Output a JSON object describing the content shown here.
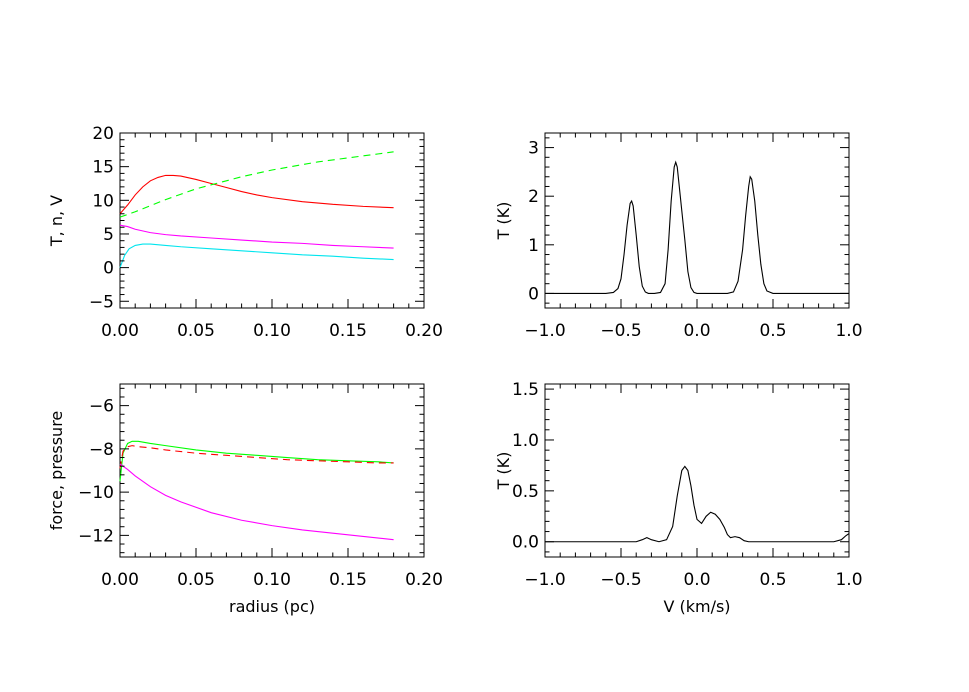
{
  "chart_data": [
    {
      "type": "line",
      "panel": "top-left",
      "xlabel": "",
      "ylabel": "T, n, V",
      "xlim": [
        0.0,
        0.2
      ],
      "ylim": [
        -6,
        20
      ],
      "xticks": [
        {
          "value": 0.0,
          "label": "0.00"
        },
        {
          "value": 0.05,
          "label": "0.05"
        },
        {
          "value": 0.1,
          "label": "0.10"
        },
        {
          "value": 0.15,
          "label": "0.15"
        },
        {
          "value": 0.2,
          "label": "0.20"
        }
      ],
      "yticks": [
        {
          "value": -5,
          "label": "−5"
        },
        {
          "value": 0,
          "label": "0"
        },
        {
          "value": 5,
          "label": "5"
        },
        {
          "value": 10,
          "label": "10"
        },
        {
          "value": 15,
          "label": "15"
        },
        {
          "value": 20,
          "label": "20"
        }
      ],
      "series": [
        {
          "color": "#ff0000",
          "dash": "solid",
          "x": [
            0.0,
            0.005,
            0.01,
            0.015,
            0.02,
            0.025,
            0.03,
            0.035,
            0.04,
            0.05,
            0.06,
            0.07,
            0.08,
            0.09,
            0.1,
            0.12,
            0.14,
            0.16,
            0.18
          ],
          "y": [
            8.0,
            9.3,
            10.8,
            12.0,
            12.9,
            13.4,
            13.7,
            13.7,
            13.6,
            13.1,
            12.5,
            11.9,
            11.3,
            10.8,
            10.4,
            9.8,
            9.4,
            9.1,
            8.9
          ]
        },
        {
          "color": "#00ff00",
          "dash": "dashed",
          "x": [
            0.0,
            0.01,
            0.02,
            0.03,
            0.04,
            0.05,
            0.06,
            0.07,
            0.08,
            0.09,
            0.1,
            0.11,
            0.12,
            0.13,
            0.14,
            0.15,
            0.16,
            0.17,
            0.18
          ],
          "y": [
            7.5,
            8.3,
            9.2,
            10.1,
            10.9,
            11.7,
            12.3,
            12.9,
            13.5,
            14.0,
            14.5,
            14.9,
            15.3,
            15.7,
            16.0,
            16.3,
            16.6,
            16.9,
            17.2
          ]
        },
        {
          "color": "#ff00ff",
          "dash": "solid",
          "x": [
            0.0,
            0.005,
            0.01,
            0.02,
            0.03,
            0.04,
            0.06,
            0.08,
            0.1,
            0.12,
            0.14,
            0.16,
            0.18
          ],
          "y": [
            6.3,
            6.1,
            5.7,
            5.2,
            4.9,
            4.7,
            4.4,
            4.1,
            3.8,
            3.6,
            3.3,
            3.1,
            2.9
          ]
        },
        {
          "color": "#00e5ee",
          "dash": "solid",
          "x": [
            0.0,
            0.003,
            0.006,
            0.01,
            0.015,
            0.02,
            0.03,
            0.04,
            0.06,
            0.08,
            0.1,
            0.12,
            0.14,
            0.16,
            0.18
          ],
          "y": [
            0.0,
            1.8,
            2.8,
            3.3,
            3.5,
            3.5,
            3.3,
            3.1,
            2.8,
            2.5,
            2.2,
            1.9,
            1.7,
            1.4,
            1.2
          ]
        }
      ]
    },
    {
      "type": "line",
      "panel": "top-right",
      "xlabel": "",
      "ylabel": "T (K)",
      "xlim": [
        -1.0,
        1.0
      ],
      "ylim": [
        -0.3,
        3.3
      ],
      "xticks": [
        {
          "value": -1.0,
          "label": "−1.0"
        },
        {
          "value": -0.5,
          "label": "−0.5"
        },
        {
          "value": 0.0,
          "label": "0.0"
        },
        {
          "value": 0.5,
          "label": "0.5"
        },
        {
          "value": 1.0,
          "label": "1.0"
        }
      ],
      "yticks": [
        {
          "value": 0,
          "label": "0"
        },
        {
          "value": 1,
          "label": "1"
        },
        {
          "value": 2,
          "label": "2"
        },
        {
          "value": 3,
          "label": "3"
        }
      ],
      "series": [
        {
          "color": "#000000",
          "dash": "solid",
          "x": [
            -1.0,
            -0.6,
            -0.55,
            -0.52,
            -0.5,
            -0.48,
            -0.46,
            -0.44,
            -0.43,
            -0.42,
            -0.4,
            -0.38,
            -0.36,
            -0.34,
            -0.32,
            -0.28,
            -0.24,
            -0.21,
            -0.19,
            -0.17,
            -0.15,
            -0.14,
            -0.13,
            -0.12,
            -0.1,
            -0.08,
            -0.06,
            -0.04,
            -0.02,
            0.0,
            0.2,
            0.24,
            0.27,
            0.3,
            0.32,
            0.34,
            0.35,
            0.36,
            0.38,
            0.4,
            0.42,
            0.44,
            0.46,
            0.5,
            1.0
          ],
          "y": [
            0.0,
            0.0,
            0.02,
            0.1,
            0.3,
            0.8,
            1.4,
            1.85,
            1.9,
            1.8,
            1.2,
            0.55,
            0.15,
            0.03,
            0.0,
            0.0,
            0.02,
            0.2,
            0.9,
            1.9,
            2.6,
            2.7,
            2.6,
            2.3,
            1.7,
            1.1,
            0.45,
            0.12,
            0.02,
            0.0,
            0.0,
            0.03,
            0.25,
            0.9,
            1.6,
            2.2,
            2.4,
            2.35,
            1.9,
            1.2,
            0.6,
            0.2,
            0.05,
            0.0,
            0.0
          ]
        }
      ]
    },
    {
      "type": "line",
      "panel": "bottom-left",
      "xlabel": "radius (pc)",
      "ylabel": "force, pressure",
      "xlim": [
        0.0,
        0.2
      ],
      "ylim": [
        -13,
        -5
      ],
      "xticks": [
        {
          "value": 0.0,
          "label": "0.00"
        },
        {
          "value": 0.05,
          "label": "0.05"
        },
        {
          "value": 0.1,
          "label": "0.10"
        },
        {
          "value": 0.15,
          "label": "0.15"
        },
        {
          "value": 0.2,
          "label": "0.20"
        }
      ],
      "yticks": [
        {
          "value": -12,
          "label": "−12"
        },
        {
          "value": -10,
          "label": "−10"
        },
        {
          "value": -8,
          "label": "−8"
        },
        {
          "value": -6,
          "label": "−6"
        }
      ],
      "series": [
        {
          "color": "#00ff00",
          "dash": "solid",
          "x": [
            0.0,
            0.002,
            0.005,
            0.008,
            0.012,
            0.02,
            0.03,
            0.05,
            0.07,
            0.09,
            0.11,
            0.13,
            0.15,
            0.17,
            0.18
          ],
          "y": [
            -9.5,
            -8.2,
            -7.75,
            -7.65,
            -7.65,
            -7.75,
            -7.85,
            -8.05,
            -8.2,
            -8.3,
            -8.4,
            -8.5,
            -8.55,
            -8.6,
            -8.65
          ]
        },
        {
          "color": "#ff0000",
          "dash": "dashed",
          "x": [
            0.0,
            0.002,
            0.005,
            0.008,
            0.012,
            0.02,
            0.03,
            0.05,
            0.07,
            0.09,
            0.11,
            0.13,
            0.15,
            0.17,
            0.18
          ],
          "y": [
            -8.9,
            -8.1,
            -7.9,
            -7.85,
            -7.9,
            -7.95,
            -8.05,
            -8.2,
            -8.3,
            -8.4,
            -8.5,
            -8.55,
            -8.6,
            -8.65,
            -8.65
          ]
        },
        {
          "color": "#ff00ff",
          "dash": "solid",
          "x": [
            0.0,
            0.005,
            0.01,
            0.02,
            0.03,
            0.04,
            0.06,
            0.08,
            0.1,
            0.12,
            0.14,
            0.16,
            0.18
          ],
          "y": [
            -8.7,
            -8.95,
            -9.25,
            -9.75,
            -10.15,
            -10.45,
            -10.95,
            -11.3,
            -11.55,
            -11.75,
            -11.9,
            -12.05,
            -12.2
          ]
        }
      ]
    },
    {
      "type": "line",
      "panel": "bottom-right",
      "xlabel": "V (km/s)",
      "ylabel": "T (K)",
      "xlim": [
        -1.0,
        1.0
      ],
      "ylim": [
        -0.15,
        1.55
      ],
      "xticks": [
        {
          "value": -1.0,
          "label": "−1.0"
        },
        {
          "value": -0.5,
          "label": "−0.5"
        },
        {
          "value": 0.0,
          "label": "0.0"
        },
        {
          "value": 0.5,
          "label": "0.5"
        },
        {
          "value": 1.0,
          "label": "1.0"
        }
      ],
      "yticks": [
        {
          "value": 0.0,
          "label": "0.0"
        },
        {
          "value": 0.5,
          "label": "0.5"
        },
        {
          "value": 1.0,
          "label": "1.0"
        },
        {
          "value": 1.5,
          "label": "1.5"
        }
      ],
      "series": [
        {
          "color": "#000000",
          "dash": "solid",
          "x": [
            -1.0,
            -0.4,
            -0.36,
            -0.33,
            -0.3,
            -0.25,
            -0.2,
            -0.16,
            -0.13,
            -0.1,
            -0.08,
            -0.06,
            -0.04,
            -0.02,
            0.0,
            0.03,
            0.06,
            0.09,
            0.12,
            0.15,
            0.18,
            0.2,
            0.22,
            0.25,
            0.28,
            0.31,
            0.34,
            0.4,
            0.6,
            0.9,
            0.95,
            0.98,
            1.0
          ],
          "y": [
            0.0,
            0.0,
            0.02,
            0.04,
            0.02,
            0.0,
            0.02,
            0.15,
            0.45,
            0.7,
            0.74,
            0.7,
            0.55,
            0.36,
            0.22,
            0.18,
            0.25,
            0.29,
            0.27,
            0.22,
            0.14,
            0.07,
            0.04,
            0.05,
            0.04,
            0.01,
            0.0,
            0.0,
            0.0,
            0.0,
            0.02,
            0.06,
            0.08
          ]
        }
      ]
    }
  ]
}
